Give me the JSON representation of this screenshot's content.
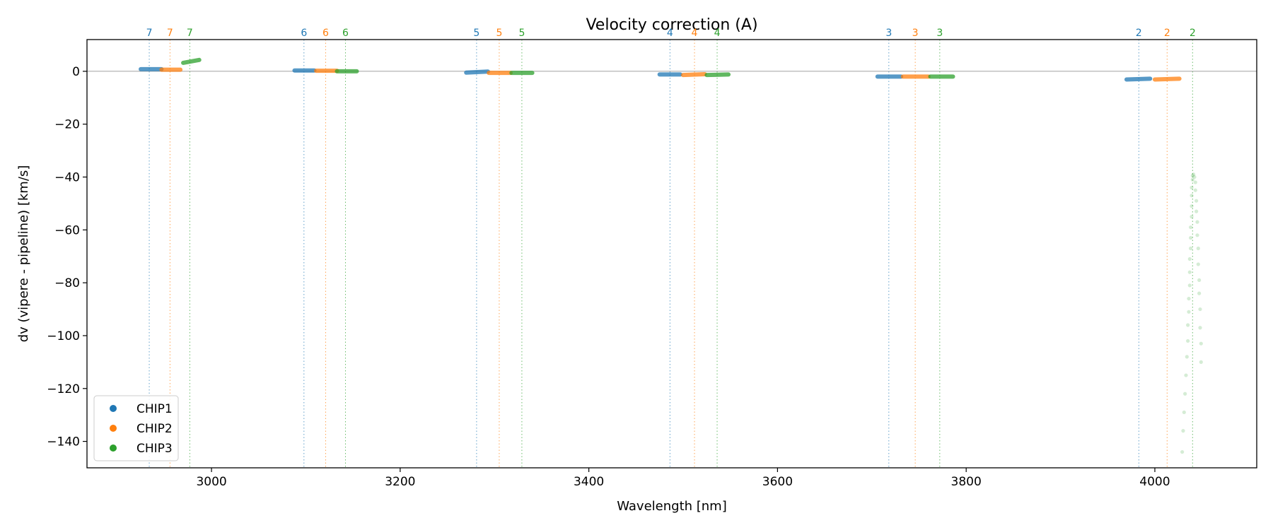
{
  "chart_data": {
    "type": "scatter",
    "title": "Velocity correction (A)",
    "xlabel": "Wavelength [nm]",
    "ylabel": "dv (vipere - pipeline) [km/s]",
    "xlim": [
      2868,
      4108
    ],
    "ylim": [
      -150,
      12
    ],
    "xticks": [
      3000,
      3200,
      3400,
      3600,
      3800,
      4000
    ],
    "yticks": [
      0,
      -20,
      -40,
      -60,
      -80,
      -100,
      -120,
      -140
    ],
    "zero_line": true,
    "legend": {
      "placement": "lower-left",
      "entries": [
        "CHIP1",
        "CHIP2",
        "CHIP3"
      ]
    },
    "colors": {
      "CHIP1": "#1f77b4",
      "CHIP2": "#ff7f0e",
      "CHIP3": "#2ca02c"
    },
    "order_markers": [
      {
        "order": "7",
        "chip": "CHIP1",
        "x": 2934
      },
      {
        "order": "7",
        "chip": "CHIP2",
        "x": 2956
      },
      {
        "order": "7",
        "chip": "CHIP3",
        "x": 2977
      },
      {
        "order": "6",
        "chip": "CHIP1",
        "x": 3098
      },
      {
        "order": "6",
        "chip": "CHIP2",
        "x": 3121
      },
      {
        "order": "6",
        "chip": "CHIP3",
        "x": 3142
      },
      {
        "order": "5",
        "chip": "CHIP1",
        "x": 3281
      },
      {
        "order": "5",
        "chip": "CHIP2",
        "x": 3305
      },
      {
        "order": "5",
        "chip": "CHIP3",
        "x": 3329
      },
      {
        "order": "4",
        "chip": "CHIP1",
        "x": 3486
      },
      {
        "order": "4",
        "chip": "CHIP2",
        "x": 3512
      },
      {
        "order": "4",
        "chip": "CHIP3",
        "x": 3536
      },
      {
        "order": "3",
        "chip": "CHIP1",
        "x": 3718
      },
      {
        "order": "3",
        "chip": "CHIP2",
        "x": 3746
      },
      {
        "order": "3",
        "chip": "CHIP3",
        "x": 3772
      },
      {
        "order": "2",
        "chip": "CHIP1",
        "x": 3983
      },
      {
        "order": "2",
        "chip": "CHIP2",
        "x": 4013
      },
      {
        "order": "2",
        "chip": "CHIP3",
        "x": 4040
      }
    ],
    "series": [
      {
        "name": "CHIP1",
        "segments": [
          {
            "x0": 2925,
            "x1": 2947,
            "y0": 0.8,
            "y1": 0.8
          },
          {
            "x0": 3088,
            "x1": 3109,
            "y0": 0.3,
            "y1": 0.3
          },
          {
            "x0": 3270,
            "x1": 3293,
            "y0": -0.5,
            "y1": -0.1
          },
          {
            "x0": 3475,
            "x1": 3497,
            "y0": -1.2,
            "y1": -1.2
          },
          {
            "x0": 3706,
            "x1": 3731,
            "y0": -2.0,
            "y1": -2.0
          },
          {
            "x0": 3970,
            "x1": 3995,
            "y0": -3.1,
            "y1": -2.8
          }
        ]
      },
      {
        "name": "CHIP2",
        "segments": [
          {
            "x0": 2947,
            "x1": 2967,
            "y0": 0.6,
            "y1": 0.6
          },
          {
            "x0": 3111,
            "x1": 3133,
            "y0": 0.2,
            "y1": 0.2
          },
          {
            "x0": 3294,
            "x1": 3317,
            "y0": -0.6,
            "y1": -0.6
          },
          {
            "x0": 3500,
            "x1": 3523,
            "y0": -1.4,
            "y1": -1.1
          },
          {
            "x0": 3733,
            "x1": 3760,
            "y0": -2.0,
            "y1": -2.0
          },
          {
            "x0": 4000,
            "x1": 4026,
            "y0": -3.1,
            "y1": -2.8
          }
        ]
      },
      {
        "name": "CHIP3",
        "segments": [
          {
            "x0": 2970,
            "x1": 2987,
            "y0": 3.2,
            "y1": 4.3
          },
          {
            "x0": 3133,
            "x1": 3154,
            "y0": 0.0,
            "y1": 0.0
          },
          {
            "x0": 3318,
            "x1": 3340,
            "y0": -0.6,
            "y1": -0.6
          },
          {
            "x0": 3525,
            "x1": 3548,
            "y0": -1.4,
            "y1": -1.2
          },
          {
            "x0": 3762,
            "x1": 3786,
            "y0": -2.0,
            "y1": -2.0
          }
        ],
        "outliers": [
          [
            4029,
            -144
          ],
          [
            4030,
            -136
          ],
          [
            4031,
            -129
          ],
          [
            4032,
            -122
          ],
          [
            4033,
            -115
          ],
          [
            4034,
            -108
          ],
          [
            4035,
            -102
          ],
          [
            4035,
            -96
          ],
          [
            4036,
            -91
          ],
          [
            4036,
            -86
          ],
          [
            4037,
            -81
          ],
          [
            4037,
            -76
          ],
          [
            4037,
            -71
          ],
          [
            4038,
            -67
          ],
          [
            4038,
            -63
          ],
          [
            4038,
            -59
          ],
          [
            4039,
            -55
          ],
          [
            4039,
            -51
          ],
          [
            4039,
            -47
          ],
          [
            4039,
            -44
          ],
          [
            4040,
            -41
          ],
          [
            4040,
            -39.5
          ],
          [
            4041,
            -39
          ],
          [
            4042,
            -40
          ],
          [
            4043,
            -42
          ],
          [
            4043,
            -45
          ],
          [
            4044,
            -49
          ],
          [
            4044,
            -53
          ],
          [
            4045,
            -57
          ],
          [
            4045,
            -62
          ],
          [
            4046,
            -67
          ],
          [
            4046,
            -73
          ],
          [
            4047,
            -79
          ],
          [
            4047,
            -84
          ],
          [
            4048,
            -90
          ],
          [
            4048,
            -97
          ],
          [
            4049,
            -103
          ],
          [
            4049,
            -110
          ]
        ]
      }
    ]
  }
}
